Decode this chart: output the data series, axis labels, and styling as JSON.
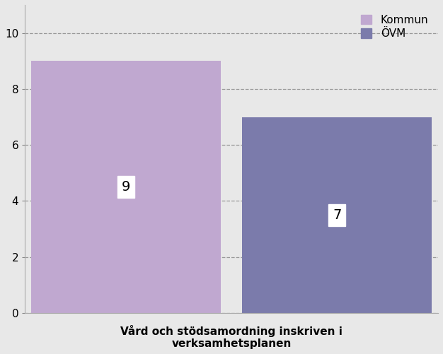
{
  "categories": [
    "Kommun",
    "ÖVM"
  ],
  "values": [
    9,
    7
  ],
  "bar_colors": [
    "#c0a8d0",
    "#7b7bab"
  ],
  "bar_labels": [
    "9",
    "7"
  ],
  "legend_labels": [
    "Kommun",
    "ÖVM"
  ],
  "legend_colors": [
    "#c0a8d0",
    "#7b7bab"
  ],
  "xlabel": "Vård och stödsamordning inskriven i\nverksamhetsplanen",
  "ylim": [
    0,
    11
  ],
  "yticks": [
    0,
    2,
    4,
    6,
    8,
    10
  ],
  "grid_color": "#999999",
  "background_color": "#e8e8e8",
  "plot_bg_color": "#e8e8e8",
  "label_fontsize": 14,
  "xlabel_fontsize": 11,
  "tick_fontsize": 11,
  "legend_fontsize": 11
}
